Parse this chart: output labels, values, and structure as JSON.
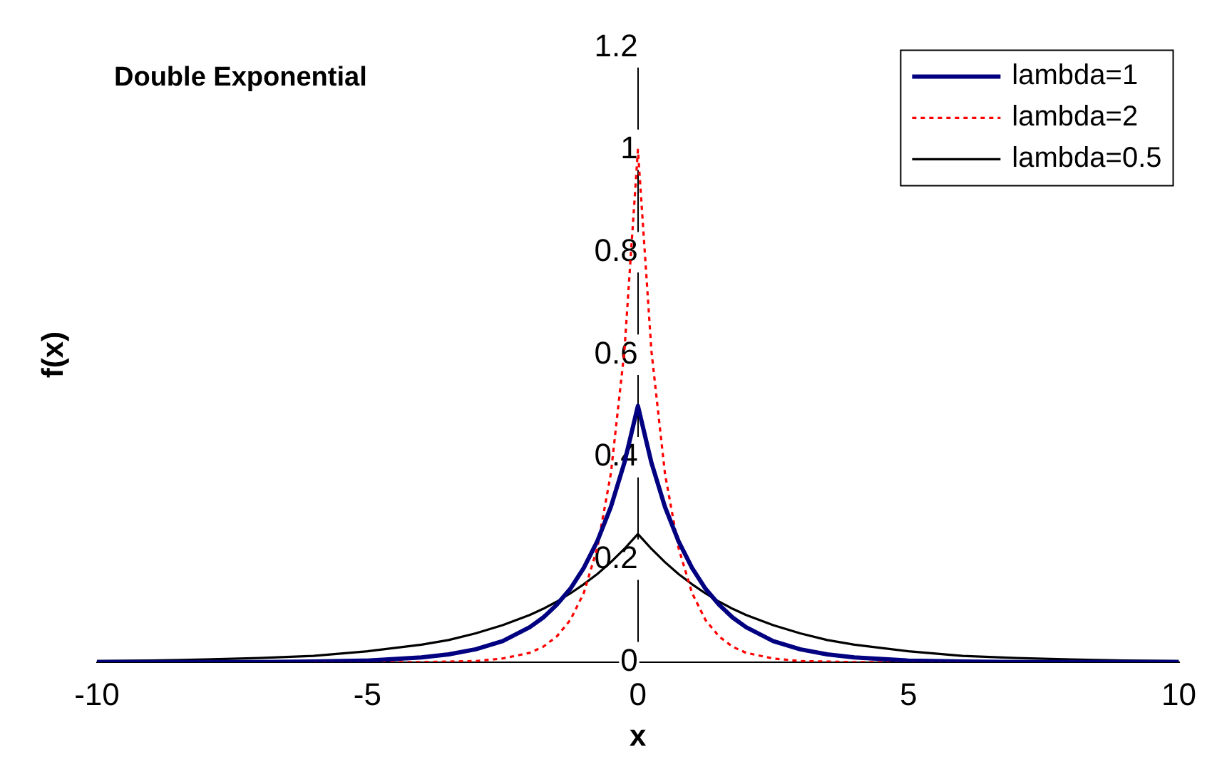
{
  "chart_data": {
    "type": "line",
    "title": "Double Exponential",
    "xlabel": "x",
    "ylabel": "f(x)",
    "x": [
      -10,
      -9,
      -8,
      -7,
      -6,
      -5,
      -4,
      -3.5,
      -3,
      -2.5,
      -2,
      -1.75,
      -1.5,
      -1.25,
      -1,
      -0.75,
      -0.5,
      -0.25,
      0,
      0.25,
      0.5,
      0.75,
      1,
      1.25,
      1.5,
      1.75,
      2,
      2.5,
      3,
      3.5,
      4,
      5,
      6,
      7,
      8,
      9,
      10
    ],
    "series": [
      {
        "name": "lambda=1",
        "color": "#000080",
        "line_style": "solid",
        "values": [
          0,
          0,
          0,
          0,
          0.001,
          0.003,
          0.009,
          0.015,
          0.025,
          0.041,
          0.068,
          0.087,
          0.112,
          0.143,
          0.184,
          0.236,
          0.303,
          0.389,
          0.5,
          0.389,
          0.303,
          0.236,
          0.184,
          0.143,
          0.112,
          0.087,
          0.068,
          0.041,
          0.025,
          0.015,
          0.009,
          0.003,
          0.001,
          0,
          0,
          0,
          0
        ]
      },
      {
        "name": "lambda=2",
        "color": "#ff0000",
        "line_style": "dotted",
        "values": [
          null,
          null,
          null,
          null,
          0,
          0,
          0,
          0.001,
          0.002,
          0.007,
          0.018,
          0.03,
          0.05,
          0.082,
          0.135,
          0.223,
          0.368,
          0.607,
          1,
          0.607,
          0.368,
          0.223,
          0.135,
          0.082,
          0.05,
          0.03,
          0.018,
          0.007,
          0.002,
          0.001,
          0,
          0,
          0,
          null,
          null,
          null,
          null
        ]
      },
      {
        "name": "lambda=0.5",
        "color": "#000000",
        "line_style": "solid",
        "values": [
          0.002,
          0.003,
          0.005,
          0.008,
          0.012,
          0.021,
          0.034,
          0.043,
          0.056,
          0.072,
          0.092,
          0.104,
          0.118,
          0.134,
          0.152,
          0.172,
          0.195,
          0.221,
          0.25,
          0.221,
          0.195,
          0.172,
          0.152,
          0.134,
          0.118,
          0.104,
          0.092,
          0.072,
          0.056,
          0.043,
          0.034,
          0.021,
          0.012,
          0.008,
          0.005,
          0.003,
          0.002
        ]
      }
    ],
    "xlim": [
      -10,
      10
    ],
    "xticks": [
      -10,
      -5,
      0,
      5,
      10
    ],
    "ylim": [
      0,
      1.2
    ],
    "yticks": [
      0,
      0.2,
      0.4,
      0.6,
      0.8,
      1,
      1.2
    ],
    "grid": false,
    "legend": "top right",
    "marker": "none"
  }
}
